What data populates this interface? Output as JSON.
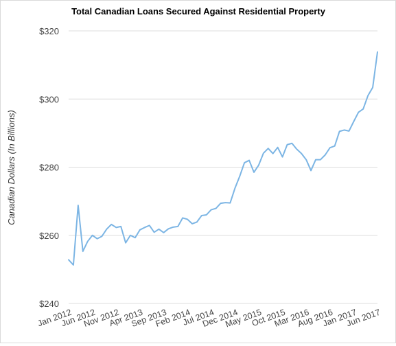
{
  "chart_data": {
    "type": "line",
    "title": "Total Canadian Loans Secured Against Residential Property",
    "ylabel": "Canadian Dollars (In Billions)",
    "xlabel": "",
    "ylim": [
      240,
      320
    ],
    "y_ticks": [
      "$240",
      "$260",
      "$280",
      "$300",
      "$320"
    ],
    "y_tick_values": [
      240,
      260,
      280,
      300,
      320
    ],
    "x_tick_labels": [
      "Jan 2012",
      "Jun 2012",
      "Nov 2012",
      "Apr 2013",
      "Sep 2013",
      "Feb 2014",
      "Jul 2014",
      "Dec 2014",
      "May 2015",
      "Oct 2015",
      "Mar 2016",
      "Aug 2016",
      "Jan 2017",
      "Jun 2017"
    ],
    "grid": true,
    "line_color": "#7cb5e4",
    "x_start": "Jan 2012",
    "series": [
      {
        "values": [
          252.8,
          251.3,
          268.8,
          255.3,
          258.2,
          260.0,
          259.0,
          259.7,
          261.8,
          263.2,
          262.3,
          262.6,
          257.8,
          260.0,
          259.3,
          261.6,
          262.3,
          262.9,
          260.9,
          261.8,
          260.8,
          261.9,
          262.4,
          262.6,
          265.1,
          264.7,
          263.4,
          263.9,
          265.8,
          266.0,
          267.5,
          267.9,
          269.4,
          269.6,
          269.5,
          273.8,
          277.3,
          281.3,
          282.0,
          278.5,
          280.6,
          284.1,
          285.5,
          284.0,
          285.8,
          283.0,
          286.6,
          287.0,
          285.3,
          284.0,
          282.2,
          279.0,
          282.2,
          282.2,
          283.6,
          285.7,
          286.2,
          290.5,
          290.9,
          290.6,
          293.4,
          296.1,
          297.1,
          301.0,
          303.4,
          313.8
        ]
      }
    ]
  }
}
